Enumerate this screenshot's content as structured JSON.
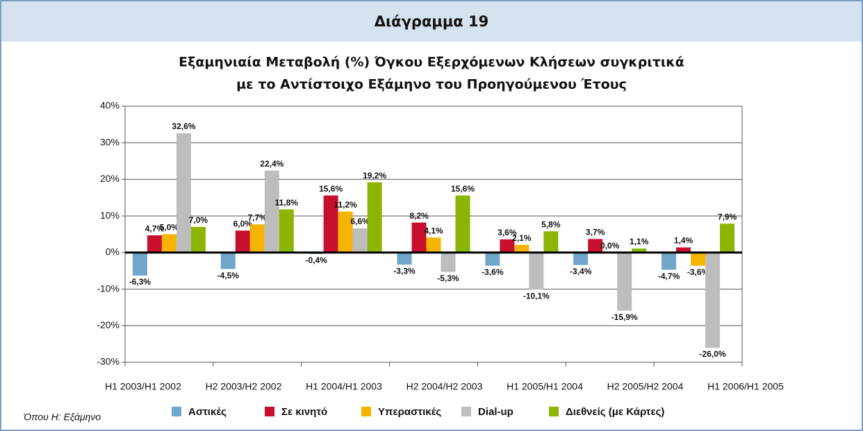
{
  "chart_data": {
    "type": "bar",
    "header": "Διάγραμμα 19",
    "title": [
      "Εξαμηνιαία Μεταβολή (%) Όγκου Εξερχόμενων Κλήσεων συγκριτικά",
      "με το Αντίστοιχο Εξάμηνο του Προηγούμενου Έτους"
    ],
    "note": "Όπου Η: Εξάμηνο",
    "categories": [
      "H1 2003/H1 2002",
      "H2 2003/H2 2002",
      "H1 2004/H1 2003",
      "H2 2004/H2 2003",
      "H1 2005/H1 2004",
      "H2 2005/H2 2004",
      "H1 2006/H1 2005"
    ],
    "series": [
      {
        "name": "Αστικές",
        "color": "#6fa6c9",
        "values": [
          -6.3,
          -4.5,
          -0.4,
          -3.3,
          -3.6,
          -3.4,
          -4.7
        ],
        "value_labels": [
          "-6,3%",
          "-4,5%",
          "-0,4%",
          "-3,3%",
          "-3,6%",
          "-3,4%",
          "-4,7%"
        ]
      },
      {
        "name": "Σε κινητό",
        "color": "#c8102e",
        "values": [
          4.7,
          6.0,
          15.6,
          8.2,
          3.6,
          3.7,
          1.4
        ],
        "value_labels": [
          "4,7%",
          "6,0%",
          "15,6%",
          "8,2%",
          "3,6%",
          "3,7%",
          "1,4%"
        ]
      },
      {
        "name": "Υπεραστικές",
        "color": "#f5b400",
        "values": [
          5.0,
          7.7,
          11.2,
          4.1,
          2.1,
          0.0,
          -3.6
        ],
        "value_labels": [
          "5,0%",
          "7,7%",
          "11,2%",
          "4,1%",
          "2,1%",
          "0,0%",
          "-3,6%"
        ]
      },
      {
        "name": "Dial-up",
        "color": "#bdbdbd",
        "values": [
          32.6,
          22.4,
          6.6,
          -5.3,
          -10.1,
          -15.9,
          -26.0
        ],
        "value_labels": [
          "32,6%",
          "22,4%",
          "6,6%",
          "-5,3%",
          "-10,1%",
          "-15,9%",
          "-26,0%"
        ]
      },
      {
        "name": "Διεθνείς (με Κάρτες)",
        "color": "#8cb400",
        "values": [
          7.0,
          11.8,
          19.2,
          15.6,
          5.8,
          1.1,
          7.9
        ],
        "value_labels": [
          "7,0%",
          "11,8%",
          "19,2%",
          "15,6%",
          "5,8%",
          "1,1%",
          "7,9%"
        ]
      }
    ],
    "ylim": [
      -30,
      40
    ],
    "yticks": [
      {
        "value": -30,
        "label": "-30%"
      },
      {
        "value": -20,
        "label": "-20%"
      },
      {
        "value": -10,
        "label": "-10%"
      },
      {
        "value": 0,
        "label": "0%"
      },
      {
        "value": 10,
        "label": "10%"
      },
      {
        "value": 20,
        "label": "20%"
      },
      {
        "value": 30,
        "label": "30%"
      },
      {
        "value": 40,
        "label": "40%"
      }
    ],
    "grid": true
  }
}
